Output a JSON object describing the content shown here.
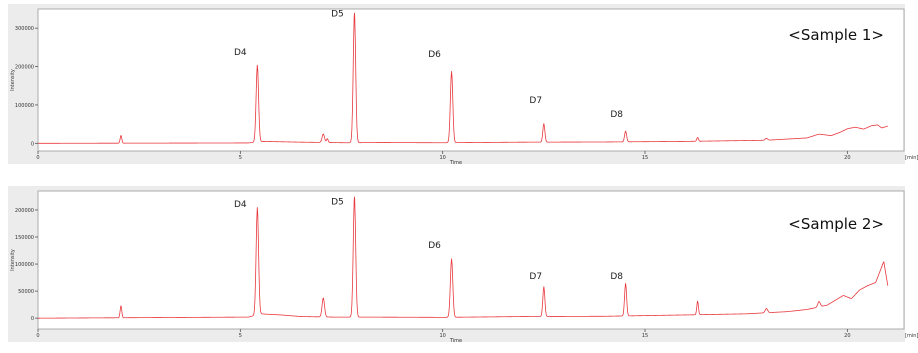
{
  "colors": {
    "trace": "#e8383d",
    "frame_bg": "#ececec",
    "plot_bg": "#ffffff",
    "axis": "#555555"
  },
  "chart_data": [
    {
      "type": "line",
      "title": "<Sample 1>",
      "xlabel": "Time",
      "ylabel": "Intensity",
      "x_unit": "[min]",
      "xlim": [
        0,
        21.4
      ],
      "ylim": [
        -20000,
        350000
      ],
      "x_ticks": [
        0,
        5,
        10,
        15,
        20
      ],
      "x_tick_labels": [
        "0",
        "5",
        "10",
        "15",
        "20"
      ],
      "y_ticks": [
        0,
        100000,
        200000,
        300000
      ],
      "y_tick_labels": [
        "0",
        "100000",
        "200000",
        "300000"
      ],
      "grid": false,
      "series": [
        {
          "baseline": [
            [
              0,
              0
            ],
            [
              5.2,
              1000
            ],
            [
              5.55,
              5000
            ],
            [
              6.5,
              3000
            ],
            [
              7.6,
              1500
            ],
            [
              8.5,
              2000
            ],
            [
              10.0,
              1500
            ],
            [
              12.0,
              3000
            ],
            [
              14.0,
              3500
            ],
            [
              16.0,
              5000
            ],
            [
              18.0,
              8000
            ],
            [
              19.0,
              14000
            ],
            [
              19.3,
              24000
            ],
            [
              19.6,
              20000
            ],
            [
              19.85,
              30000
            ],
            [
              20.0,
              38000
            ],
            [
              20.2,
              42000
            ],
            [
              20.4,
              37000
            ],
            [
              20.6,
              46000
            ],
            [
              20.75,
              48000
            ],
            [
              20.85,
              40000
            ],
            [
              21.0,
              45000
            ]
          ],
          "peaks": [
            [
              2.05,
              20000,
              0.02
            ],
            [
              5.42,
              200000,
              0.03
            ],
            [
              7.05,
              22000,
              0.03
            ],
            [
              7.15,
              10000,
              0.02
            ],
            [
              7.82,
              338000,
              0.03
            ],
            [
              10.22,
              186000,
              0.03
            ],
            [
              12.5,
              48000,
              0.025
            ],
            [
              14.52,
              28000,
              0.025
            ],
            [
              16.3,
              10000,
              0.02
            ],
            [
              18.0,
              5000,
              0.03
            ]
          ]
        }
      ],
      "annotations": [
        {
          "text": "D4",
          "x": 5.0,
          "y": 230000
        },
        {
          "text": "D5",
          "x": 7.4,
          "y": 330000
        },
        {
          "text": "D6",
          "x": 9.8,
          "y": 225000
        },
        {
          "text": "D7",
          "x": 12.3,
          "y": 105000
        },
        {
          "text": "D8",
          "x": 14.3,
          "y": 68000
        }
      ]
    },
    {
      "type": "line",
      "title": "<Sample 2>",
      "xlabel": "Time",
      "ylabel": "Intensity",
      "x_unit": "[min]",
      "xlim": [
        0,
        21.4
      ],
      "ylim": [
        -20000,
        235000
      ],
      "x_ticks": [
        0,
        5,
        10,
        15,
        20
      ],
      "x_tick_labels": [
        "0",
        "5",
        "10",
        "15",
        "20"
      ],
      "y_ticks": [
        0,
        50000,
        100000,
        150000,
        200000
      ],
      "y_tick_labels": [
        "0",
        "50000",
        "100000",
        "150000",
        "200000"
      ],
      "grid": false,
      "series": [
        {
          "baseline": [
            [
              0,
              0
            ],
            [
              5.2,
              2000
            ],
            [
              5.5,
              8000
            ],
            [
              6.0,
              6000
            ],
            [
              6.5,
              3000
            ],
            [
              7.3,
              2000
            ],
            [
              8.0,
              2000
            ],
            [
              10.0,
              1500
            ],
            [
              12.0,
              3000
            ],
            [
              14.0,
              3500
            ],
            [
              16.0,
              6000
            ],
            [
              17.5,
              8000
            ],
            [
              18.5,
              12000
            ],
            [
              19.0,
              16000
            ],
            [
              19.5,
              24000
            ],
            [
              19.9,
              42000
            ],
            [
              20.1,
              36000
            ],
            [
              20.3,
              52000
            ],
            [
              20.5,
              60000
            ],
            [
              20.7,
              66000
            ],
            [
              20.85,
              95000
            ],
            [
              20.9,
              105000
            ],
            [
              21.0,
              60000
            ]
          ],
          "peaks": [
            [
              2.05,
              22000,
              0.02
            ],
            [
              5.42,
              198000,
              0.03
            ],
            [
              7.05,
              35000,
              0.03
            ],
            [
              7.82,
              222000,
              0.03
            ],
            [
              10.22,
              108000,
              0.03
            ],
            [
              12.5,
              55000,
              0.025
            ],
            [
              14.52,
              60000,
              0.025
            ],
            [
              16.3,
              25000,
              0.02
            ],
            [
              18.0,
              8000,
              0.03
            ],
            [
              19.3,
              10000,
              0.03
            ]
          ]
        }
      ],
      "annotations": [
        {
          "text": "D4",
          "x": 5.0,
          "y": 205000
        },
        {
          "text": "D5",
          "x": 7.4,
          "y": 210000
        },
        {
          "text": "D6",
          "x": 9.8,
          "y": 130000
        },
        {
          "text": "D7",
          "x": 12.3,
          "y": 72000
        },
        {
          "text": "D8",
          "x": 14.3,
          "y": 72000
        }
      ]
    }
  ]
}
